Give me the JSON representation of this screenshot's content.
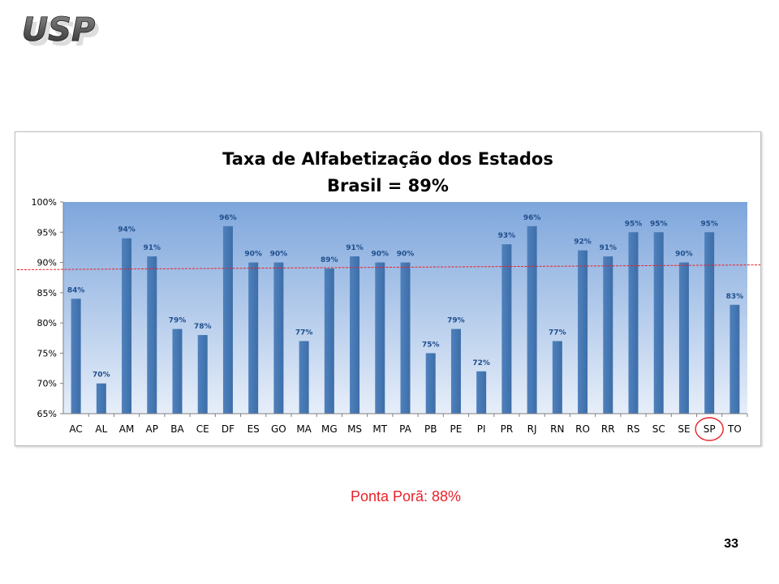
{
  "logo": {
    "text": "USP"
  },
  "note": {
    "text": "Ponta Porã: 88%"
  },
  "page": {
    "number": "33"
  },
  "colors": {
    "bar": "#4f81bd",
    "bar_dark": "#3d6ea8",
    "label": "#1f4e8c",
    "plot_top": "#7ea6dc",
    "plot_bottom": "#e6eef9",
    "reference_line": "#e8222a",
    "highlight": "#e8222a"
  },
  "chart_data": {
    "type": "bar",
    "title": "Taxa de Alfabetização dos Estados",
    "subtitle": "Brasil = 89%",
    "xlabel": "",
    "ylabel": "",
    "ylim": [
      65,
      100
    ],
    "yticks": [
      65,
      70,
      75,
      80,
      85,
      90,
      95,
      100
    ],
    "ytick_labels": [
      "65%",
      "70%",
      "75%",
      "80%",
      "85%",
      "90%",
      "95%",
      "100%"
    ],
    "grid": false,
    "categories": [
      "AC",
      "AL",
      "AM",
      "AP",
      "BA",
      "CE",
      "DF",
      "ES",
      "GO",
      "MA",
      "MG",
      "MS",
      "MT",
      "PA",
      "PB",
      "PE",
      "PI",
      "PR",
      "RJ",
      "RN",
      "RO",
      "RR",
      "RS",
      "SC",
      "SE",
      "SP",
      "TO"
    ],
    "values": [
      84,
      70,
      94,
      91,
      79,
      78,
      96,
      90,
      90,
      77,
      89,
      91,
      90,
      90,
      75,
      79,
      72,
      93,
      96,
      77,
      92,
      91,
      95,
      95,
      90,
      95,
      83
    ],
    "data_labels": [
      "84%",
      "70%",
      "94%",
      "91%",
      "79%",
      "78%",
      "96%",
      "90%",
      "90%",
      "77%",
      "89%",
      "91%",
      "90%",
      "90%",
      "75%",
      "79%",
      "72%",
      "93%",
      "96%",
      "77%",
      "92%",
      "91%",
      "95%",
      "95%",
      "90%",
      "95%",
      "83%"
    ],
    "reference_line": {
      "start": 88.8,
      "end": 89.6
    },
    "highlight_category": "SP"
  }
}
